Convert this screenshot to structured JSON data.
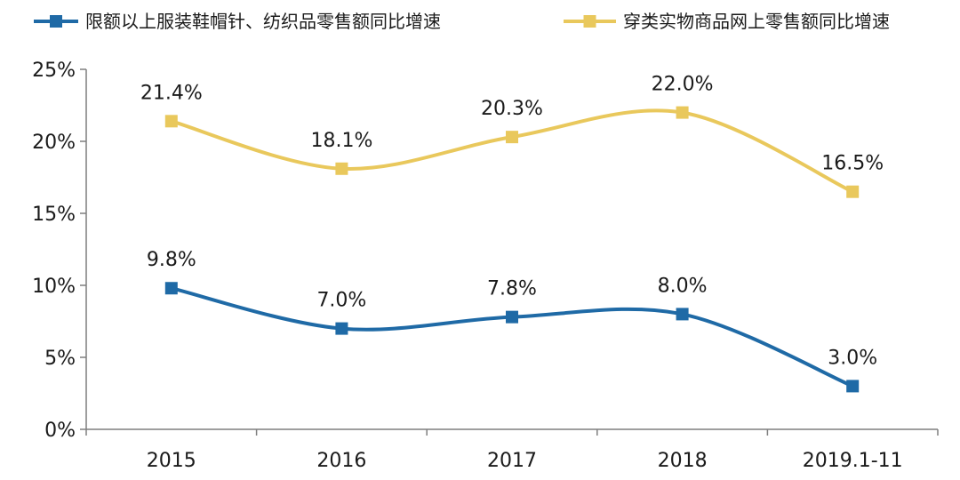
{
  "chart_data": {
    "type": "line",
    "categories": [
      "2015",
      "2016",
      "2017",
      "2018",
      "2019.1-11"
    ],
    "ylim": [
      0,
      25
    ],
    "yticks": [
      0,
      5,
      10,
      15,
      20,
      25
    ],
    "ytick_labels": [
      "0%",
      "5%",
      "10%",
      "15%",
      "20%",
      "25%"
    ],
    "legend_position": "top",
    "grid": false,
    "series": [
      {
        "name": "限额以上服装鞋帽针、纺织品零售额同比增速",
        "values": [
          9.8,
          7.0,
          7.8,
          8.0,
          3.0
        ],
        "labels": [
          "9.8%",
          "7.0%",
          "7.8%",
          "8.0%",
          "3.0%"
        ],
        "color": "#1f6aa6"
      },
      {
        "name": "穿类实物商品网上零售额同比增速",
        "values": [
          21.4,
          18.1,
          20.3,
          22.0,
          16.5
        ],
        "labels": [
          "21.4%",
          "18.1%",
          "20.3%",
          "22.0%",
          "16.5%"
        ],
        "color": "#e9c85c"
      }
    ]
  }
}
